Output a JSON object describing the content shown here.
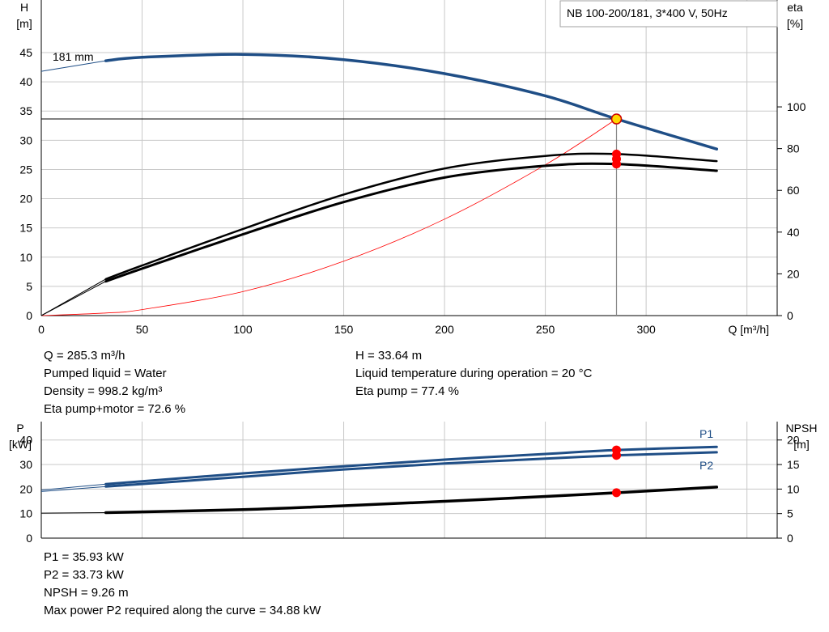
{
  "title_box": "NB 100-200/181, 3*400 V, 50Hz",
  "colors": {
    "blue": "#1f4e86",
    "black": "#000000",
    "red": "#ff0000",
    "grid": "#c8c8c8",
    "marker_fill": "#ffd700"
  },
  "chart_data": [
    {
      "type": "line",
      "name": "head-efficiency",
      "xlabel": "Q [m³/h]",
      "ylabel_left": [
        "H",
        "[m]"
      ],
      "ylabel_right": [
        "eta",
        "[%]"
      ],
      "xlim": [
        0,
        365
      ],
      "ylim_left": [
        0,
        54
      ],
      "ylim_right_units_per_left": 2.8,
      "x_ticks": [
        "0",
        "50",
        "100",
        "150",
        "200",
        "250",
        "300"
      ],
      "y_ticks_left": [
        "0",
        "5",
        "10",
        "15",
        "20",
        "25",
        "30",
        "35",
        "40",
        "45"
      ],
      "y_ticks_right": [
        "0",
        "20",
        "40",
        "60",
        "80",
        "100"
      ],
      "grid": true,
      "curve_label": "181 mm",
      "series": [
        {
          "axis": "left",
          "color": "blue",
          "style": "thick",
          "points": [
            [
              32,
              43.6
            ],
            [
              50,
              44.2
            ],
            [
              100,
              44.7
            ],
            [
              150,
              43.8
            ],
            [
              200,
              41.4
            ],
            [
              250,
              37.6
            ],
            [
              285.3,
              33.64
            ],
            [
              335,
              28.5
            ]
          ]
        },
        {
          "axis": "left",
          "color": "blue",
          "style": "thin",
          "points": [
            [
              0,
              41.8
            ],
            [
              32,
              43.6
            ]
          ]
        },
        {
          "axis": "right",
          "color": "black",
          "style": "double",
          "points": [
            [
              0,
              0
            ],
            [
              32,
              17.5
            ],
            [
              50,
              24
            ],
            [
              100,
              41.5
            ],
            [
              150,
              58
            ],
            [
              200,
              70.5
            ],
            [
              250,
              76.5
            ],
            [
              285.3,
              77.4
            ],
            [
              335,
              74
            ]
          ]
        },
        {
          "axis": "left",
          "color": "red",
          "style": "thin",
          "points": [
            [
              0,
              0
            ],
            [
              32,
              0.45
            ],
            [
              50,
              1.03
            ],
            [
              100,
              4.1
            ],
            [
              150,
              9.3
            ],
            [
              200,
              16.5
            ],
            [
              250,
              25.8
            ],
            [
              285.3,
              33.64
            ]
          ]
        }
      ],
      "operating_point": {
        "q": 285.3,
        "h": 33.64,
        "eta_pump": 77.4,
        "eta_total": 72.6
      }
    },
    {
      "type": "line",
      "name": "power-npsh",
      "xlim": [
        0,
        365
      ],
      "ylabel_left": [
        "P",
        "[kW]"
      ],
      "ylabel_right": [
        "NPSH",
        "[m]"
      ],
      "ylim_left": [
        0,
        47.5
      ],
      "ylim_right": [
        0,
        23.75
      ],
      "y_ticks_left": [
        "0",
        "10",
        "20",
        "30",
        "40"
      ],
      "y_ticks_right": [
        "0",
        "5",
        "10",
        "15",
        "20"
      ],
      "grid": true,
      "series": [
        {
          "name": "P1",
          "axis": "left",
          "color": "blue",
          "points": [
            [
              0,
              19.6
            ],
            [
              32,
              22
            ],
            [
              100,
              26.4
            ],
            [
              150,
              29.3
            ],
            [
              200,
              32
            ],
            [
              250,
              34.3
            ],
            [
              285.3,
              35.93
            ],
            [
              335,
              37.2
            ]
          ]
        },
        {
          "name": "P2",
          "axis": "left",
          "color": "blue",
          "points": [
            [
              0,
              19
            ],
            [
              32,
              21
            ],
            [
              100,
              25
            ],
            [
              150,
              28
            ],
            [
              200,
              30.4
            ],
            [
              250,
              32.4
            ],
            [
              285.3,
              33.73
            ],
            [
              335,
              35
            ]
          ]
        },
        {
          "axis": "right",
          "color": "black",
          "points": [
            [
              0,
              5.1
            ],
            [
              32,
              5.2
            ],
            [
              100,
              5.8
            ],
            [
              150,
              6.6
            ],
            [
              200,
              7.5
            ],
            [
              250,
              8.5
            ],
            [
              285.3,
              9.26
            ],
            [
              335,
              10.4
            ]
          ]
        }
      ]
    }
  ],
  "info_top": {
    "q": "Q = 285.3 m³/h",
    "liquid": "Pumped liquid = Water",
    "density": "Density = 998.2 kg/m³",
    "eta_total": "Eta pump+motor = 72.6 %",
    "h": "H = 33.64 m",
    "temperature": "Liquid temperature during operation = 20 °C",
    "eta_pump": "Eta pump = 77.4 %"
  },
  "info_bottom": {
    "p1": "P1 = 35.93 kW",
    "p2": "P2 = 33.73 kW",
    "npsh": "NPSH = 9.26 m",
    "max_power": "Max power P2 required along the curve = 34.88 kW"
  }
}
